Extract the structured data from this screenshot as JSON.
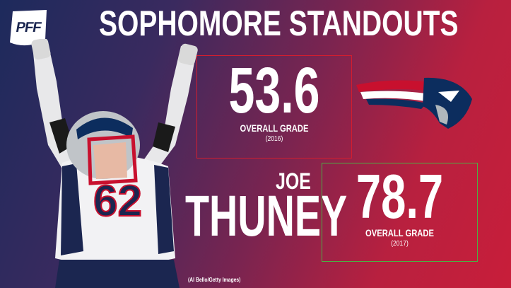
{
  "brand": {
    "logo_text": "PFF",
    "icon": "pff-logo-icon"
  },
  "title": "SOPHOMORE STANDOUTS",
  "player": {
    "first_name": "JOE",
    "last_name": "THUNEY",
    "jersey_number": "62"
  },
  "grades": [
    {
      "value": "53.6",
      "label": "OVERALL GRADE",
      "year": "(2016)",
      "border_color": "#d21e2f"
    },
    {
      "value": "78.7",
      "label": "OVERALL GRADE",
      "year": "(2017)",
      "border_color": "#4bb043"
    }
  ],
  "team": {
    "icon": "patriots-logo-icon",
    "colors": {
      "navy": "#0c2d5e",
      "red": "#c8102e",
      "silver": "#b0b7bc"
    }
  },
  "photo_credit": "(Al Bello/Getty Images)",
  "colors": {
    "bg_left": "#1d2a5c",
    "bg_right": "#c81e3a"
  }
}
